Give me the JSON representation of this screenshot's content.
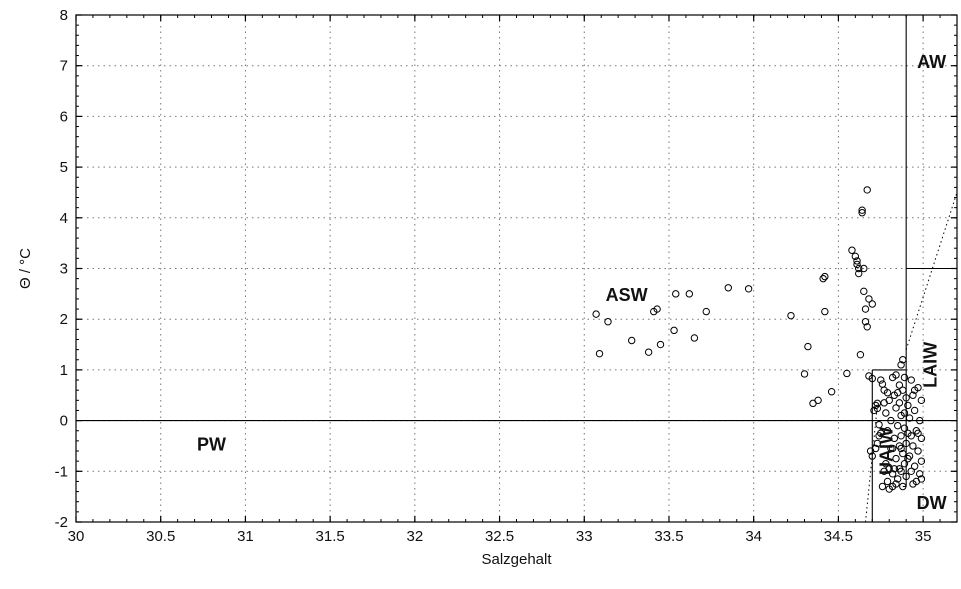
{
  "chart_data": {
    "type": "scatter",
    "xlabel": "Salzgehalt",
    "ylabel": "Θ / °C",
    "xlim": [
      30,
      35.2
    ],
    "ylim": [
      -2,
      8
    ],
    "x_ticks": [
      "30",
      "30.5",
      "31",
      "31.5",
      "32",
      "32.5",
      "33",
      "33.5",
      "34",
      "34.5",
      "35"
    ],
    "y_ticks": [
      "-2",
      "-1",
      "0",
      "1",
      "2",
      "3",
      "4",
      "5",
      "6",
      "7",
      "8"
    ],
    "grid": true,
    "marker": "open-circle",
    "regions": [
      {
        "label": "PW",
        "at": [
          30.8,
          -0.5
        ]
      },
      {
        "label": "ASW",
        "at": [
          33.25,
          2.45
        ]
      },
      {
        "label": "AW",
        "at": [
          35.05,
          7.05
        ]
      },
      {
        "label": "LAIW",
        "at": [
          35.05,
          1.1
        ],
        "rotated": true
      },
      {
        "label": "DW",
        "at": [
          35.05,
          -1.65
        ]
      },
      {
        "label": "UAIW",
        "at": [
          34.79,
          -0.6
        ],
        "rotated": true
      }
    ],
    "lines": [
      {
        "from": [
          30,
          0
        ],
        "to": [
          35.2,
          0
        ]
      },
      {
        "from": [
          34.9,
          0
        ],
        "to": [
          34.9,
          8
        ]
      },
      {
        "from": [
          34.9,
          3
        ],
        "to": [
          35.2,
          3
        ]
      },
      {
        "from": [
          34.7,
          -2
        ],
        "to": [
          34.7,
          1
        ]
      },
      {
        "from": [
          34.7,
          1
        ],
        "to": [
          34.9,
          1
        ]
      },
      {
        "from": [
          34.9,
          -1.3
        ],
        "to": [
          34.9,
          0
        ]
      },
      {
        "from": [
          34.88,
          -1.3
        ],
        "to": [
          34.9,
          -1.3
        ]
      }
    ],
    "dotted_lines": [
      {
        "from": [
          34.9,
          1.4
        ],
        "to": [
          35.2,
          4.5
        ]
      },
      {
        "from": [
          34.66,
          -2
        ],
        "to": [
          34.73,
          0.3
        ]
      }
    ],
    "series": [
      {
        "points": [
          [
            33.07,
            2.1
          ],
          [
            33.09,
            1.32
          ],
          [
            33.14,
            1.95
          ],
          [
            33.28,
            1.58
          ],
          [
            33.38,
            1.35
          ],
          [
            33.41,
            2.15
          ],
          [
            33.43,
            2.2
          ],
          [
            33.45,
            1.5
          ],
          [
            33.53,
            1.78
          ],
          [
            33.54,
            2.5
          ],
          [
            33.62,
            2.5
          ],
          [
            33.65,
            1.63
          ],
          [
            33.72,
            2.15
          ],
          [
            33.85,
            2.62
          ],
          [
            33.97,
            2.6
          ],
          [
            34.22,
            2.07
          ],
          [
            34.3,
            0.92
          ],
          [
            34.32,
            1.46
          ],
          [
            34.35,
            0.34
          ],
          [
            34.38,
            0.4
          ],
          [
            34.41,
            2.8
          ],
          [
            34.42,
            2.84
          ],
          [
            34.42,
            2.15
          ],
          [
            34.46,
            0.57
          ],
          [
            34.55,
            0.93
          ],
          [
            34.58,
            3.36
          ],
          [
            34.6,
            3.24
          ],
          [
            34.61,
            3.15
          ],
          [
            34.61,
            3.08
          ],
          [
            34.62,
            3.0
          ],
          [
            34.62,
            2.9
          ],
          [
            34.63,
            1.3
          ],
          [
            34.64,
            4.15
          ],
          [
            34.64,
            4.1
          ],
          [
            34.65,
            3.0
          ],
          [
            34.65,
            2.55
          ],
          [
            34.66,
            2.2
          ],
          [
            34.66,
            1.95
          ],
          [
            34.67,
            1.85
          ],
          [
            34.67,
            4.55
          ],
          [
            34.68,
            2.4
          ],
          [
            34.7,
            2.3
          ],
          [
            34.68,
            0.88
          ],
          [
            34.7,
            0.83
          ],
          [
            34.71,
            0.2
          ],
          [
            34.72,
            0.3
          ],
          [
            34.73,
            0.24
          ],
          [
            34.73,
            0.34
          ],
          [
            34.74,
            -0.08
          ],
          [
            34.75,
            -0.25
          ],
          [
            34.69,
            -0.6
          ],
          [
            34.7,
            -0.7
          ],
          [
            34.72,
            -0.55
          ],
          [
            34.73,
            -0.45
          ],
          [
            34.74,
            -0.3
          ],
          [
            34.75,
            0.8
          ],
          [
            34.76,
            0.72
          ],
          [
            34.77,
            0.6
          ],
          [
            34.77,
            -1.0
          ],
          [
            34.78,
            -0.85
          ],
          [
            34.78,
            0.15
          ],
          [
            34.79,
            -1.2
          ],
          [
            34.79,
            -0.2
          ],
          [
            34.8,
            0.4
          ],
          [
            34.8,
            -0.95
          ],
          [
            34.8,
            -1.35
          ],
          [
            34.81,
            0.0
          ],
          [
            34.82,
            -0.55
          ],
          [
            34.82,
            0.85
          ],
          [
            34.82,
            -1.05
          ],
          [
            34.83,
            -0.35
          ],
          [
            34.83,
            0.5
          ],
          [
            34.84,
            0.25
          ],
          [
            34.84,
            -0.75
          ],
          [
            34.84,
            0.9
          ],
          [
            34.84,
            -1.25
          ],
          [
            34.85,
            -0.1
          ],
          [
            34.85,
            -1.15
          ],
          [
            34.86,
            0.35
          ],
          [
            34.86,
            -0.5
          ],
          [
            34.86,
            0.7
          ],
          [
            34.86,
            -0.95
          ],
          [
            34.87,
            1.1
          ],
          [
            34.87,
            0.1
          ],
          [
            34.87,
            -0.3
          ],
          [
            34.87,
            -1.0
          ],
          [
            34.88,
            0.6
          ],
          [
            34.88,
            -0.65
          ],
          [
            34.88,
            1.2
          ],
          [
            34.89,
            -0.15
          ],
          [
            34.89,
            0.85
          ],
          [
            34.89,
            -0.85
          ],
          [
            34.9,
            0.45
          ],
          [
            34.9,
            -0.45
          ],
          [
            34.9,
            -1.1
          ],
          [
            34.91,
            0.3
          ],
          [
            34.91,
            -0.25
          ],
          [
            34.92,
            0.05
          ],
          [
            34.92,
            -0.7
          ],
          [
            34.93,
            0.8
          ],
          [
            34.93,
            -1.0
          ],
          [
            34.94,
            0.5
          ],
          [
            34.94,
            -0.5
          ],
          [
            34.95,
            0.2
          ],
          [
            34.95,
            -0.9
          ],
          [
            34.96,
            -0.2
          ],
          [
            34.96,
            -1.2
          ],
          [
            34.97,
            0.65
          ],
          [
            34.97,
            -0.6
          ],
          [
            34.98,
            0.0
          ],
          [
            34.98,
            -1.05
          ],
          [
            34.99,
            0.4
          ],
          [
            34.99,
            -0.35
          ],
          [
            34.99,
            -0.8
          ],
          [
            34.99,
            -1.15
          ],
          [
            34.77,
            0.35
          ],
          [
            34.79,
            0.55
          ],
          [
            34.81,
            -0.55
          ],
          [
            34.83,
            -0.95
          ],
          [
            34.85,
            0.55
          ],
          [
            34.87,
            -0.55
          ],
          [
            34.89,
            0.15
          ],
          [
            34.91,
            -0.75
          ],
          [
            34.93,
            -0.3
          ],
          [
            34.95,
            0.6
          ],
          [
            34.97,
            -0.25
          ],
          [
            34.76,
            -1.3
          ],
          [
            34.82,
            -1.3
          ],
          [
            34.88,
            -1.3
          ],
          [
            34.94,
            -1.25
          ]
        ]
      }
    ]
  }
}
